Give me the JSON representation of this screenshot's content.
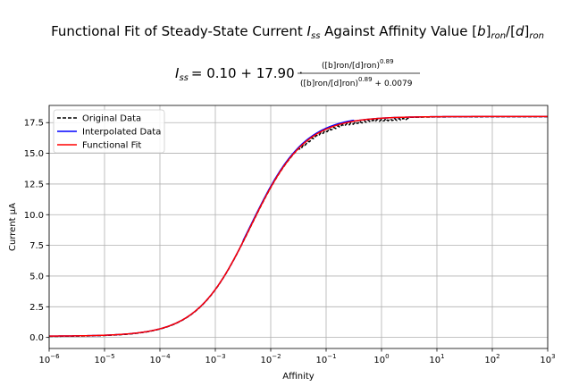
{
  "chart_data": {
    "type": "line",
    "title": "Functional Fit of Steady-State Current I_ss Against Affinity Value [b]_ron/[d]_ron",
    "title_parts": {
      "prefix": "Functional Fit of Steady-State Current ",
      "var": "I",
      "var_sub": "ss",
      "middle": " Against Affinity Value [",
      "b": "b",
      "b_close": "]",
      "b_sub": "ron",
      "slash": "/[",
      "d": "d",
      "d_close": "]",
      "d_sub": "ron"
    },
    "equation": {
      "lhs_var": "I",
      "lhs_sub": "ss",
      "rhs_text": "= 0.10 + 17.90 ·",
      "numerator": "([b]ron/[d]ron)",
      "numerator_exp": "0.89",
      "denominator": "([b]ron/[d]ron)",
      "denominator_exp": "0.89",
      "denominator_tail": "+ 0.0079"
    },
    "fit_params": {
      "offset": 0.1,
      "amplitude": 17.9,
      "exponent": 0.89,
      "constant": 0.0079
    },
    "xlabel": "Affinity",
    "ylabel": "Current μA",
    "xscale": "log",
    "xlim": [
      1e-06,
      1000
    ],
    "ylim": [
      -0.9,
      18.9
    ],
    "x_ticks": [
      {
        "base": "10",
        "exp": "−6",
        "value": 1e-06
      },
      {
        "base": "10",
        "exp": "−5",
        "value": 1e-05
      },
      {
        "base": "10",
        "exp": "−4",
        "value": 0.0001
      },
      {
        "base": "10",
        "exp": "−3",
        "value": 0.001
      },
      {
        "base": "10",
        "exp": "−2",
        "value": 0.01
      },
      {
        "base": "10",
        "exp": "−1",
        "value": 0.1
      },
      {
        "base": "10",
        "exp": "0",
        "value": 1
      },
      {
        "base": "10",
        "exp": "1",
        "value": 10
      },
      {
        "base": "10",
        "exp": "2",
        "value": 100
      },
      {
        "base": "10",
        "exp": "3",
        "value": 1000
      }
    ],
    "y_ticks": [
      "0.0",
      "2.5",
      "5.0",
      "7.5",
      "10.0",
      "12.5",
      "15.0",
      "17.5"
    ],
    "grid": true,
    "legend_position": "upper-left",
    "series": [
      {
        "name": "Original Data",
        "color": "#000000",
        "style": "dashed",
        "x": [
          1e-06,
          1e-05,
          0.0001,
          0.001,
          0.003,
          0.01,
          0.03,
          0.1,
          0.3,
          1,
          10,
          100,
          1000
        ],
        "y": [
          0.08,
          0.18,
          0.75,
          4.0,
          8.3,
          12.4,
          15.6,
          17.0,
          17.5,
          17.75,
          17.9,
          17.95,
          17.95
        ]
      },
      {
        "name": "Interpolated Data",
        "color": "#0000ff",
        "style": "solid",
        "x": [
          1e-06,
          1e-05,
          0.0001,
          0.001,
          0.003,
          0.01,
          0.03,
          0.1,
          0.3,
          1,
          10,
          100,
          1000
        ],
        "y": [
          0.1,
          0.2,
          0.8,
          4.1,
          8.4,
          12.5,
          15.7,
          17.2,
          17.7,
          17.85,
          17.95,
          17.98,
          17.99
        ]
      },
      {
        "name": "Functional Fit",
        "color": "#ff0000",
        "style": "solid",
        "source": "fit"
      }
    ]
  }
}
